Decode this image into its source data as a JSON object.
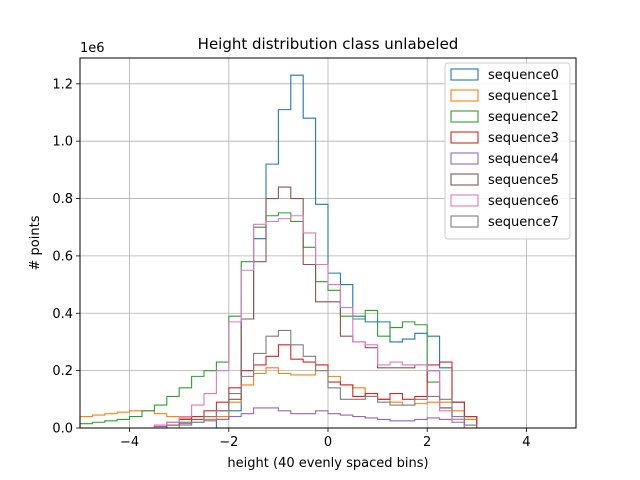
{
  "chart_data": {
    "type": "histogram-step",
    "title": "Height distribution class unlabeled",
    "xlabel": "height (40 evenly spaced bins)",
    "ylabel": "# points",
    "y_offset_text": "1e6",
    "xlim": [
      -5,
      5
    ],
    "ylim": [
      0,
      1290000
    ],
    "x_ticks": [
      -4,
      -2,
      0,
      2,
      4
    ],
    "x_tick_labels": [
      "−4",
      "−2",
      "0",
      "2",
      "4"
    ],
    "y_ticks": [
      0,
      200000,
      400000,
      600000,
      800000,
      1000000,
      1200000
    ],
    "y_tick_labels": [
      "0.0",
      "0.2",
      "0.4",
      "0.6",
      "0.8",
      "1.0",
      "1.2"
    ],
    "grid": true,
    "legend_position": "top-right",
    "bin_edges": [
      -5.0,
      -4.75,
      -4.5,
      -4.25,
      -4.0,
      -3.75,
      -3.5,
      -3.25,
      -3.0,
      -2.75,
      -2.5,
      -2.25,
      -2.0,
      -1.75,
      -1.5,
      -1.25,
      -1.0,
      -0.75,
      -0.5,
      -0.25,
      0.0,
      0.25,
      0.5,
      0.75,
      1.0,
      1.25,
      1.5,
      1.75,
      2.0,
      2.25,
      2.5,
      2.75,
      3.0,
      3.25,
      3.5,
      3.75,
      4.0,
      4.25,
      4.5,
      4.75,
      5.0
    ],
    "series": [
      {
        "name": "sequence0",
        "color": "#1f77b4",
        "values": [
          0,
          0,
          0,
          0,
          0,
          0,
          0,
          0,
          0,
          0,
          0,
          30000,
          60000,
          380000,
          660000,
          920000,
          1110000,
          1230000,
          1080000,
          780000,
          540000,
          500000,
          390000,
          370000,
          370000,
          300000,
          310000,
          330000,
          320000,
          210000,
          90000,
          40000,
          0,
          0,
          0,
          0,
          0,
          0,
          0,
          0
        ]
      },
      {
        "name": "sequence1",
        "color": "#ff7f0e",
        "values": [
          40000,
          45000,
          50000,
          55000,
          60000,
          60000,
          50000,
          40000,
          35000,
          30000,
          30000,
          40000,
          90000,
          150000,
          190000,
          210000,
          190000,
          185000,
          185000,
          220000,
          180000,
          150000,
          140000,
          110000,
          100000,
          90000,
          80000,
          85000,
          90000,
          90000,
          60000,
          30000,
          0,
          0,
          0,
          0,
          0,
          0,
          0,
          0
        ]
      },
      {
        "name": "sequence2",
        "color": "#2ca02c",
        "values": [
          15000,
          20000,
          25000,
          30000,
          40000,
          60000,
          80000,
          110000,
          140000,
          180000,
          200000,
          230000,
          390000,
          580000,
          700000,
          740000,
          750000,
          720000,
          630000,
          510000,
          480000,
          390000,
          380000,
          410000,
          320000,
          350000,
          370000,
          360000,
          160000,
          70000,
          30000,
          0,
          0,
          0,
          0,
          0,
          0,
          0,
          0,
          0
        ]
      },
      {
        "name": "sequence3",
        "color": "#d62728",
        "values": [
          0,
          0,
          0,
          0,
          0,
          0,
          10000,
          20000,
          30000,
          40000,
          60000,
          90000,
          140000,
          200000,
          220000,
          250000,
          290000,
          240000,
          230000,
          220000,
          160000,
          150000,
          110000,
          120000,
          100000,
          120000,
          100000,
          110000,
          220000,
          230000,
          90000,
          40000,
          0,
          0,
          0,
          0,
          0,
          0,
          0,
          0
        ]
      },
      {
        "name": "sequence4",
        "color": "#9467bd",
        "values": [
          0,
          0,
          0,
          0,
          0,
          0,
          5000,
          10000,
          15000,
          20000,
          25000,
          30000,
          40000,
          50000,
          70000,
          70000,
          60000,
          50000,
          50000,
          60000,
          50000,
          45000,
          40000,
          35000,
          30000,
          25000,
          25000,
          30000,
          35000,
          30000,
          20000,
          10000,
          0,
          0,
          0,
          0,
          0,
          0,
          0,
          0
        ]
      },
      {
        "name": "sequence5",
        "color": "#8c564b",
        "values": [
          0,
          0,
          0,
          0,
          0,
          0,
          0,
          10000,
          20000,
          30000,
          40000,
          60000,
          100000,
          380000,
          580000,
          800000,
          840000,
          800000,
          570000,
          440000,
          440000,
          320000,
          300000,
          280000,
          210000,
          210000,
          210000,
          220000,
          200000,
          70000,
          30000,
          0,
          0,
          0,
          0,
          0,
          0,
          0,
          0,
          0
        ]
      },
      {
        "name": "sequence6",
        "color": "#e377c2",
        "values": [
          0,
          0,
          0,
          0,
          0,
          0,
          10000,
          20000,
          40000,
          80000,
          120000,
          200000,
          370000,
          550000,
          710000,
          720000,
          730000,
          740000,
          680000,
          570000,
          500000,
          420000,
          300000,
          290000,
          220000,
          230000,
          220000,
          220000,
          200000,
          60000,
          30000,
          0,
          0,
          0,
          0,
          0,
          0,
          0,
          0,
          0
        ]
      },
      {
        "name": "sequence7",
        "color": "#7f7f7f",
        "values": [
          0,
          0,
          0,
          0,
          0,
          0,
          0,
          0,
          10000,
          20000,
          40000,
          60000,
          120000,
          180000,
          260000,
          320000,
          340000,
          290000,
          250000,
          200000,
          140000,
          100000,
          100000,
          110000,
          90000,
          80000,
          80000,
          100000,
          110000,
          100000,
          40000,
          10000,
          0,
          0,
          0,
          0,
          0,
          0,
          0,
          0
        ]
      }
    ]
  }
}
